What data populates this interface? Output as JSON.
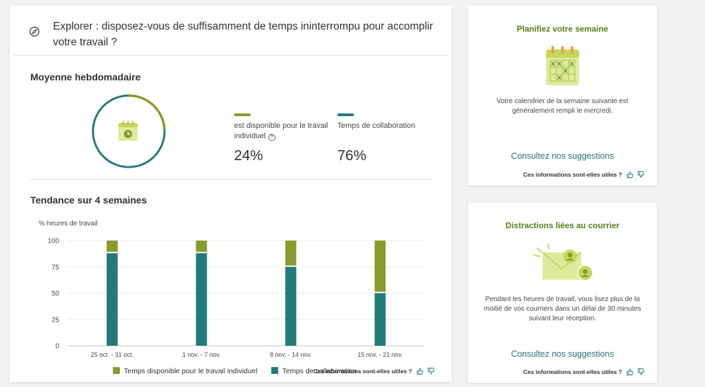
{
  "main": {
    "title": "Explorer : disposez-vous de suffisamment de temps ininterrompu pour accomplir votre travail ?",
    "weekly": {
      "title": "Moyenne hebdomadaire",
      "individual_label": "est disponible pour le travail individuel",
      "individual_value": "24%",
      "collab_label": "Temps de collaboration",
      "collab_value": "76%",
      "individual_fraction": 0.24,
      "colors": {
        "individual": "#8a9a2c",
        "collab": "#237a7b"
      }
    },
    "trend": {
      "title": "Tendance sur 4 semaines"
    },
    "feedback_text": "Ces informations sont-elles utiles ?"
  },
  "chart_data": {
    "type": "bar",
    "stacked": true,
    "ylabel": "% heures de travail",
    "xlabel": "",
    "ylim": [
      0,
      100
    ],
    "yticks": [
      0,
      25,
      50,
      75,
      100
    ],
    "categories": [
      "25 oct. - 31 oct.",
      "1 nov. - 7 nov.",
      "8 nov. - 14 nov.",
      "15 nov. - 21 nov."
    ],
    "series": [
      {
        "name": "Temps de collaboration",
        "values": [
          88,
          88,
          75,
          50
        ],
        "color": "#237a7b"
      },
      {
        "name": "Temps disponible pour le travail individuel",
        "values": [
          12,
          12,
          25,
          50
        ],
        "color": "#8a9a2c"
      }
    ],
    "legend": "bottom",
    "grid": true
  },
  "plan_card": {
    "title": "Planifiez votre semaine",
    "text": "Votre calendrier de la semaine suivante est généralement rempli le mercredi.",
    "link": "Consultez nos suggestions",
    "feedback_text": "Ces informations sont-elles utiles ?",
    "icon": "calendar-icon"
  },
  "mail_card": {
    "title": "Distractions liées au courrier",
    "text": "Pendant les heures de travail, vous lisez plus de la moitié de vos courriers dans un délai de 30 minutes suivant leur réception.",
    "link": "Consultez nos suggestions",
    "feedback_text": "Ces informations sont-elles utiles ?",
    "icon": "mail-icon"
  }
}
